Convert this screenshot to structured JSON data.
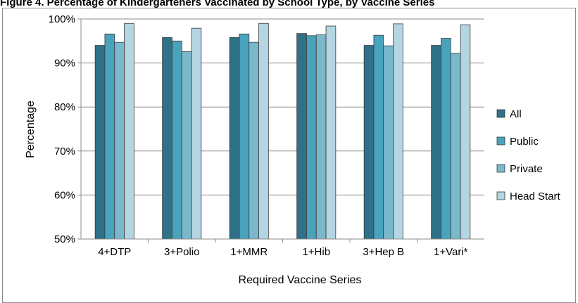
{
  "chart_data": {
    "type": "bar",
    "title": "Figure 4. Percentage of Kindergarteners Vaccinated by School Type, by Vaccine Series",
    "xlabel": "Required Vaccine Series",
    "ylabel": "Percentage",
    "ylim": [
      50,
      100
    ],
    "yticks": [
      "50%",
      "60%",
      "70%",
      "80%",
      "90%",
      "100%"
    ],
    "categories": [
      "4+DTP",
      "3+Polio",
      "1+MMR",
      "1+Hib",
      "3+Hep B",
      "1+Vari*"
    ],
    "series": [
      {
        "name": "All",
        "color": "#2e7188",
        "values": [
          94.0,
          95.8,
          95.8,
          96.7,
          94.0,
          94.0
        ]
      },
      {
        "name": "Public",
        "color": "#4aa3bc",
        "values": [
          96.6,
          95.0,
          96.6,
          96.2,
          96.3,
          95.6
        ]
      },
      {
        "name": "Private",
        "color": "#7ab8cc",
        "values": [
          94.7,
          92.6,
          94.7,
          96.4,
          93.9,
          92.2
        ]
      },
      {
        "name": "Head Start",
        "color": "#b4d5e2",
        "values": [
          99.0,
          97.9,
          99.0,
          98.4,
          98.9,
          98.7
        ]
      }
    ],
    "grid": true,
    "legend_position": "right"
  }
}
